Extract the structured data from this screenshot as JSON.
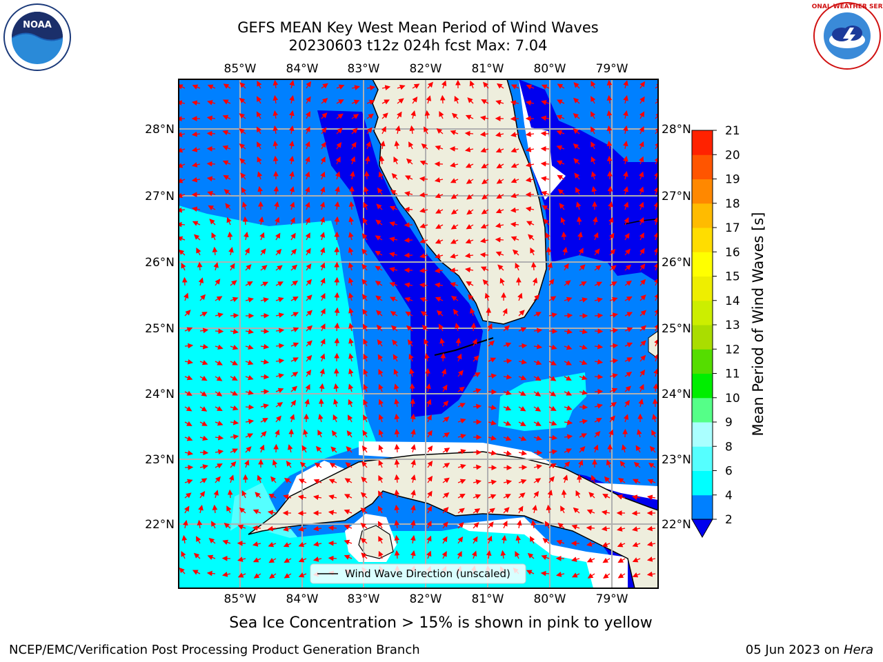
{
  "header": {
    "title_line1": "GEFS MEAN Key West Mean Period of Wind Waves",
    "title_line2": "20230603 t12z 024h fcst   Max: 7.04"
  },
  "logos": {
    "left": "NOAA",
    "left_ring": "NATIONAL OCEANIC AND ATMOSPHERIC ADMINISTRATION · U.S. DEPARTMENT OF COMMERCE",
    "right_ring": "NATIONAL WEATHER SERVICE"
  },
  "map": {
    "lon_labels": [
      "85°W",
      "84°W",
      "83°W",
      "82°W",
      "81°W",
      "80°W",
      "79°W"
    ],
    "lat_labels": [
      "28°N",
      "27°N",
      "26°N",
      "25°N",
      "24°N",
      "23°N",
      "22°N"
    ],
    "legend_label": "Wind Wave Direction (unscaled)",
    "colors": {
      "land": "#eeeedd",
      "c2_4": "#0080ff",
      "c4_6": "#00ffff",
      "c6_8": "#55ffff",
      "c_low": "#0000ee",
      "arrow": "#ff0000"
    }
  },
  "colorbar": {
    "label": "Mean Period of Wind Waves [s]",
    "ticks": [
      "2",
      "4",
      "6",
      "8",
      "9",
      "10",
      "11",
      "12",
      "13",
      "14",
      "15",
      "16",
      "17",
      "18",
      "19",
      "20",
      "21"
    ],
    "colors": [
      "#0080ff",
      "#00ffff",
      "#55ffff",
      "#aaffff",
      "#55ff88",
      "#00ee00",
      "#55dd00",
      "#aadd00",
      "#ccee00",
      "#eeee00",
      "#ffff00",
      "#ffdd00",
      "#ffbb00",
      "#ff8800",
      "#ff5500",
      "#ff2200",
      "#ff0000"
    ],
    "extend_color": "#0000ee"
  },
  "notes": {
    "sea_ice": "Sea Ice Concentration > 15% is shown in pink to yellow",
    "footer_left": "NCEP/EMC/Verification Post Processing Product Generation Branch",
    "footer_right_date": "05 Jun 2023 on ",
    "footer_right_host": "Hera"
  }
}
